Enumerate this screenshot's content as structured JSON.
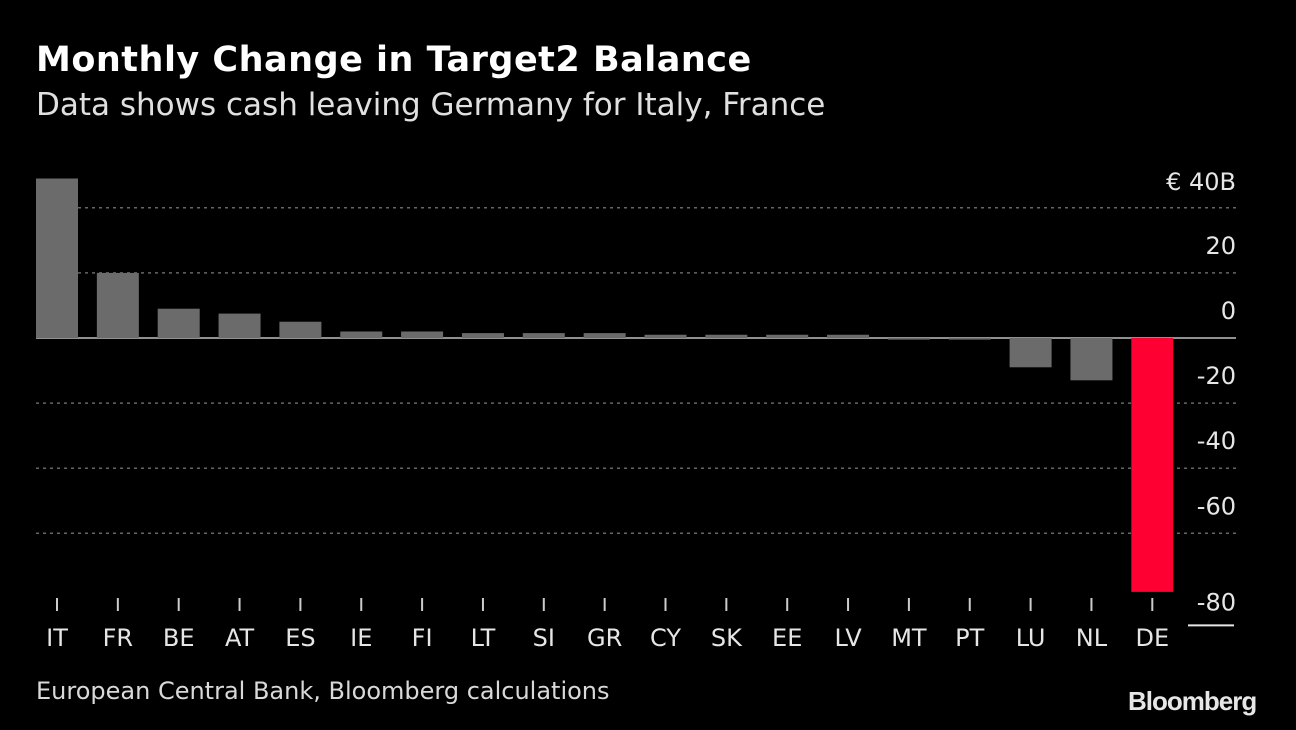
{
  "title": "Monthly Change in Target2 Balance",
  "subtitle": "Data shows cash leaving Germany for Italy, France",
  "source": "European Central Bank, Bloomberg calculations",
  "logo_text": "Bloomberg",
  "colors": {
    "bar": "#6b6b6b",
    "highlight": "#ff0033",
    "grid": "#666666",
    "text": "#e6e6e6"
  },
  "chart_data": {
    "type": "bar",
    "title": "Monthly Change in Target2 Balance",
    "subtitle": "Data shows cash leaving Germany for Italy, France",
    "categories": [
      "IT",
      "FR",
      "BE",
      "AT",
      "ES",
      "IE",
      "FI",
      "LT",
      "SI",
      "GR",
      "CY",
      "SK",
      "EE",
      "LV",
      "MT",
      "PT",
      "LU",
      "NL",
      "DE"
    ],
    "values": [
      49,
      20,
      9,
      7.5,
      5,
      2,
      2,
      1.5,
      1.5,
      1.5,
      1,
      1,
      1,
      1,
      -0.5,
      -0.5,
      -9,
      -13,
      -78
    ],
    "highlight": [
      "DE"
    ],
    "yticks": [
      40,
      20,
      0,
      -20,
      -40,
      -60,
      -80
    ],
    "ytick_labels": [
      "€ 40B",
      "20",
      "0",
      "-20",
      "-40",
      "-60",
      "-80"
    ],
    "ylim": [
      -80,
      50
    ],
    "grid": true
  }
}
